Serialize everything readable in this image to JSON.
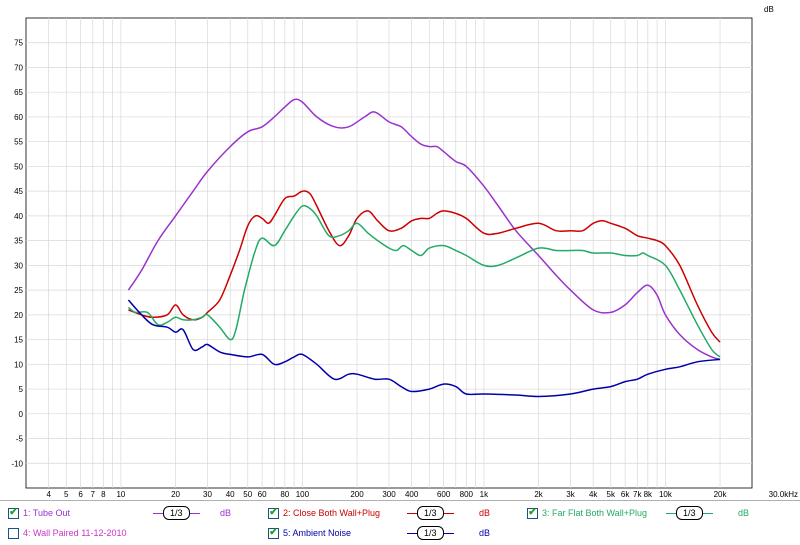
{
  "chart_data": {
    "type": "line",
    "ylabel": "dB",
    "xlabel": "",
    "x_scale": "log",
    "xlim": [
      3,
      30000
    ],
    "ylim": [
      -15,
      80
    ],
    "grid": true,
    "y_ticks": [
      -10,
      -5,
      0,
      5,
      10,
      15,
      20,
      25,
      30,
      35,
      40,
      45,
      50,
      55,
      60,
      65,
      70,
      75
    ],
    "x_ticks": [
      {
        "v": 4,
        "label": "4"
      },
      {
        "v": 5,
        "label": "5"
      },
      {
        "v": 6,
        "label": "6"
      },
      {
        "v": 7,
        "label": "7"
      },
      {
        "v": 8,
        "label": "8"
      },
      {
        "v": 10,
        "label": "10"
      },
      {
        "v": 20,
        "label": "20"
      },
      {
        "v": 30,
        "label": "30"
      },
      {
        "v": 40,
        "label": "40"
      },
      {
        "v": 50,
        "label": "50"
      },
      {
        "v": 60,
        "label": "60"
      },
      {
        "v": 80,
        "label": "80"
      },
      {
        "v": 100,
        "label": "100"
      },
      {
        "v": 200,
        "label": "200"
      },
      {
        "v": 300,
        "label": "300"
      },
      {
        "v": 400,
        "label": "400"
      },
      {
        "v": 600,
        "label": "600"
      },
      {
        "v": 800,
        "label": "800"
      },
      {
        "v": 1000,
        "label": "1k"
      },
      {
        "v": 2000,
        "label": "2k"
      },
      {
        "v": 3000,
        "label": "3k"
      },
      {
        "v": 4000,
        "label": "4k"
      },
      {
        "v": 5000,
        "label": "5k"
      },
      {
        "v": 6000,
        "label": "6k"
      },
      {
        "v": 7000,
        "label": "7k"
      },
      {
        "v": 8000,
        "label": "8k"
      },
      {
        "v": 10000,
        "label": "10k"
      },
      {
        "v": 20000,
        "label": "20k"
      },
      {
        "v": 30000,
        "label": "30.0kHz"
      }
    ],
    "series": [
      {
        "name": "1: Tube Out",
        "color": "#9933cc",
        "points": [
          [
            11,
            25
          ],
          [
            13,
            29
          ],
          [
            16,
            35
          ],
          [
            20,
            40
          ],
          [
            25,
            45
          ],
          [
            30,
            49
          ],
          [
            40,
            54
          ],
          [
            50,
            57
          ],
          [
            60,
            58
          ],
          [
            70,
            60
          ],
          [
            80,
            62
          ],
          [
            90,
            63.5
          ],
          [
            100,
            63
          ],
          [
            120,
            60
          ],
          [
            150,
            58
          ],
          [
            180,
            58
          ],
          [
            220,
            60
          ],
          [
            250,
            61
          ],
          [
            300,
            59
          ],
          [
            350,
            58
          ],
          [
            400,
            56
          ],
          [
            450,
            54.5
          ],
          [
            500,
            54
          ],
          [
            550,
            54
          ],
          [
            600,
            53
          ],
          [
            700,
            51
          ],
          [
            800,
            50
          ],
          [
            1000,
            46
          ],
          [
            1200,
            42
          ],
          [
            1500,
            37
          ],
          [
            2000,
            32
          ],
          [
            2500,
            28
          ],
          [
            3000,
            25
          ],
          [
            4000,
            21
          ],
          [
            5000,
            20.5
          ],
          [
            6000,
            22
          ],
          [
            7000,
            24.5
          ],
          [
            8000,
            26
          ],
          [
            9000,
            24
          ],
          [
            10000,
            20
          ],
          [
            12000,
            16
          ],
          [
            15000,
            13
          ],
          [
            18000,
            11.5
          ],
          [
            20000,
            11
          ]
        ]
      },
      {
        "name": "2: Close Both Wall+Plug",
        "color": "#cc0000",
        "points": [
          [
            11,
            21
          ],
          [
            13,
            20
          ],
          [
            15,
            19.5
          ],
          [
            18,
            20
          ],
          [
            20,
            22
          ],
          [
            22,
            20
          ],
          [
            25,
            19
          ],
          [
            28,
            19.5
          ],
          [
            30,
            20.5
          ],
          [
            35,
            23
          ],
          [
            40,
            28
          ],
          [
            45,
            33
          ],
          [
            50,
            38
          ],
          [
            55,
            40
          ],
          [
            60,
            39.5
          ],
          [
            65,
            38.5
          ],
          [
            70,
            40
          ],
          [
            80,
            43.5
          ],
          [
            90,
            44
          ],
          [
            100,
            45
          ],
          [
            110,
            44.5
          ],
          [
            120,
            42
          ],
          [
            140,
            37
          ],
          [
            160,
            34
          ],
          [
            180,
            36
          ],
          [
            200,
            39.5
          ],
          [
            230,
            41
          ],
          [
            260,
            39
          ],
          [
            300,
            37
          ],
          [
            350,
            37.5
          ],
          [
            400,
            39
          ],
          [
            450,
            39.5
          ],
          [
            500,
            39.5
          ],
          [
            550,
            40.5
          ],
          [
            600,
            41
          ],
          [
            700,
            40.5
          ],
          [
            800,
            39.5
          ],
          [
            1000,
            36.5
          ],
          [
            1200,
            36.5
          ],
          [
            1500,
            37.5
          ],
          [
            2000,
            38.5
          ],
          [
            2500,
            37
          ],
          [
            3000,
            37
          ],
          [
            3500,
            37
          ],
          [
            4000,
            38.5
          ],
          [
            4500,
            39
          ],
          [
            5000,
            38.5
          ],
          [
            6000,
            37.5
          ],
          [
            7000,
            36
          ],
          [
            8000,
            35.5
          ],
          [
            9000,
            35
          ],
          [
            10000,
            34
          ],
          [
            12000,
            30
          ],
          [
            15000,
            22
          ],
          [
            18000,
            16.5
          ],
          [
            20000,
            14.5
          ]
        ]
      },
      {
        "name": "3: Far Flat  Both Wall+Plug",
        "color": "#22aa66",
        "points": [
          [
            11,
            21.5
          ],
          [
            12,
            20.5
          ],
          [
            14,
            20.5
          ],
          [
            16,
            18
          ],
          [
            18,
            18.5
          ],
          [
            20,
            19.5
          ],
          [
            22,
            19
          ],
          [
            25,
            19
          ],
          [
            28,
            19.5
          ],
          [
            30,
            20
          ],
          [
            35,
            17.5
          ],
          [
            40,
            15
          ],
          [
            43,
            17
          ],
          [
            48,
            25
          ],
          [
            55,
            33
          ],
          [
            60,
            35.5
          ],
          [
            70,
            34
          ],
          [
            80,
            37
          ],
          [
            90,
            40
          ],
          [
            100,
            42
          ],
          [
            110,
            41.5
          ],
          [
            120,
            40
          ],
          [
            140,
            36
          ],
          [
            160,
            36
          ],
          [
            180,
            37
          ],
          [
            200,
            38.5
          ],
          [
            230,
            36.5
          ],
          [
            260,
            35
          ],
          [
            300,
            33.5
          ],
          [
            330,
            33
          ],
          [
            360,
            34
          ],
          [
            400,
            33
          ],
          [
            450,
            32
          ],
          [
            500,
            33.5
          ],
          [
            600,
            34
          ],
          [
            700,
            33
          ],
          [
            800,
            32
          ],
          [
            1000,
            30
          ],
          [
            1200,
            30
          ],
          [
            1500,
            31.5
          ],
          [
            2000,
            33.5
          ],
          [
            2500,
            33
          ],
          [
            3000,
            33
          ],
          [
            3500,
            33
          ],
          [
            4000,
            32.5
          ],
          [
            5000,
            32.5
          ],
          [
            6000,
            32
          ],
          [
            7000,
            32
          ],
          [
            7500,
            32.5
          ],
          [
            8000,
            32
          ],
          [
            10000,
            30
          ],
          [
            12000,
            25
          ],
          [
            15000,
            18
          ],
          [
            18000,
            13
          ],
          [
            20000,
            11.5
          ]
        ]
      },
      {
        "name": "5: Ambient Noise",
        "color": "#0000aa",
        "points": [
          [
            11,
            23
          ],
          [
            13,
            20
          ],
          [
            15,
            18
          ],
          [
            18,
            17.5
          ],
          [
            20,
            16.5
          ],
          [
            22,
            17
          ],
          [
            25,
            13
          ],
          [
            28,
            13.5
          ],
          [
            30,
            14
          ],
          [
            35,
            12.5
          ],
          [
            40,
            12
          ],
          [
            50,
            11.5
          ],
          [
            60,
            12
          ],
          [
            70,
            10
          ],
          [
            80,
            10.5
          ],
          [
            90,
            11.5
          ],
          [
            100,
            12
          ],
          [
            120,
            10
          ],
          [
            150,
            7
          ],
          [
            180,
            8
          ],
          [
            200,
            8
          ],
          [
            250,
            7
          ],
          [
            300,
            7
          ],
          [
            350,
            5.5
          ],
          [
            400,
            4.5
          ],
          [
            500,
            5
          ],
          [
            600,
            6
          ],
          [
            700,
            5.5
          ],
          [
            800,
            4
          ],
          [
            1000,
            4
          ],
          [
            1500,
            3.8
          ],
          [
            2000,
            3.5
          ],
          [
            3000,
            4
          ],
          [
            4000,
            5
          ],
          [
            5000,
            5.5
          ],
          [
            6000,
            6.5
          ],
          [
            7000,
            7
          ],
          [
            8000,
            8
          ],
          [
            10000,
            9
          ],
          [
            12000,
            9.5
          ],
          [
            15000,
            10.5
          ],
          [
            20000,
            11
          ]
        ]
      }
    ]
  },
  "legend": {
    "items": [
      {
        "label": "1: Tube Out",
        "checked": true,
        "smoothing": "1/3",
        "unit": "dB",
        "color": "#9933cc"
      },
      {
        "label": "2: Close Both Wall+Plug",
        "checked": true,
        "smoothing": "1/3",
        "unit": "dB",
        "color": "#cc0000"
      },
      {
        "label": "3: Far Flat  Both Wall+Plug",
        "checked": true,
        "smoothing": "1/3",
        "unit": "dB",
        "color": "#22aa66"
      },
      {
        "label": "4: Wall Paired 11-12-2010",
        "checked": false,
        "color": "#cc33cc"
      },
      {
        "label": "5: Ambient Noise",
        "checked": true,
        "smoothing": "1/3",
        "unit": "dB",
        "color": "#0000aa"
      }
    ],
    "check_glyph": "✔"
  }
}
